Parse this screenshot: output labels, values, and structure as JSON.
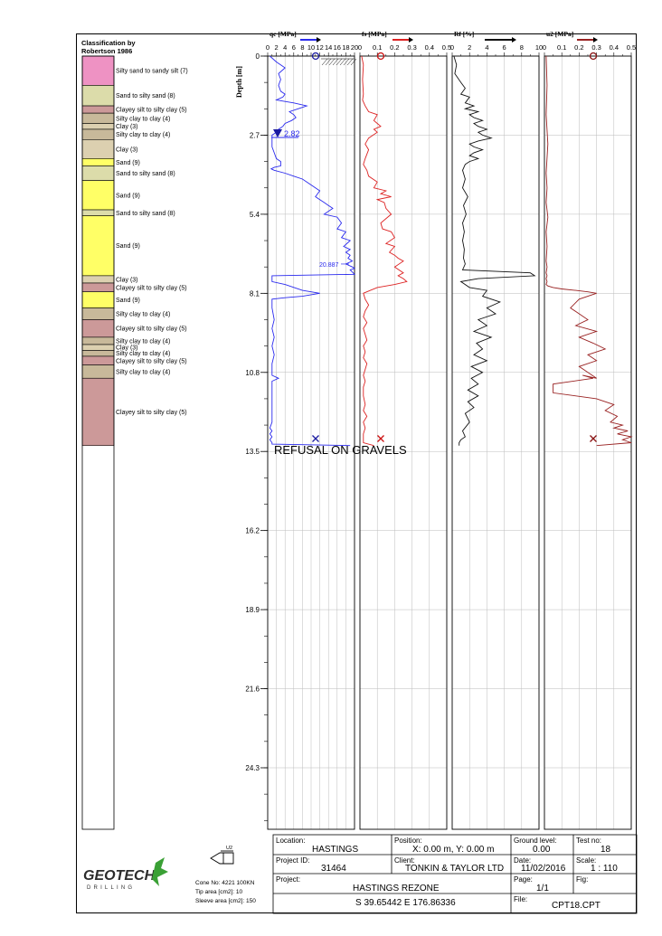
{
  "classification": {
    "title_line1": "Classification by",
    "title_line2": "Robertson 1986",
    "max_depth": 26.4,
    "layers": [
      {
        "top": 0.0,
        "bottom": 1.0,
        "label": "Silty sand to sandy silt (7)",
        "color": "#ee92c3"
      },
      {
        "top": 1.0,
        "bottom": 1.7,
        "label": "Sand to silty sand (8)",
        "color": "#dcdcaa"
      },
      {
        "top": 1.7,
        "bottom": 1.95,
        "label": "Clayey silt to silty clay (5)",
        "color": "#cc9999"
      },
      {
        "top": 1.95,
        "bottom": 2.3,
        "label": "Silty clay to clay (4)",
        "color": "#c8b99a"
      },
      {
        "top": 2.3,
        "bottom": 2.5,
        "label": "Clay (3)",
        "color": "#dcd0b0"
      },
      {
        "top": 2.5,
        "bottom": 2.85,
        "label": "Silty clay to clay (4)",
        "color": "#c8b99a"
      },
      {
        "top": 2.85,
        "bottom": 3.5,
        "label": "Clay (3)",
        "color": "#dcd0b0"
      },
      {
        "top": 3.5,
        "bottom": 3.75,
        "label": "Sand (9)",
        "color": "#ffff66"
      },
      {
        "top": 3.75,
        "bottom": 4.25,
        "label": "Sand to silty sand (8)",
        "color": "#dcdcaa"
      },
      {
        "top": 4.25,
        "bottom": 5.25,
        "label": "Sand (9)",
        "color": "#ffff66"
      },
      {
        "top": 5.25,
        "bottom": 5.45,
        "label": "Sand to silty sand (8)",
        "color": "#dcdcaa"
      },
      {
        "top": 5.45,
        "bottom": 7.5,
        "label": "Sand (9)",
        "color": "#ffff66"
      },
      {
        "top": 7.5,
        "bottom": 7.75,
        "label": "Clay (3)",
        "color": "#dcd0b0"
      },
      {
        "top": 7.75,
        "bottom": 8.05,
        "label": "Clayey silt to silty clay (5)",
        "color": "#cc9999"
      },
      {
        "top": 8.05,
        "bottom": 8.6,
        "label": "Sand (9)",
        "color": "#ffff66"
      },
      {
        "top": 8.6,
        "bottom": 9.0,
        "label": "Silty clay to clay (4)",
        "color": "#c8b99a"
      },
      {
        "top": 9.0,
        "bottom": 9.6,
        "label": "Clayey silt to silty clay (5)",
        "color": "#cc9999"
      },
      {
        "top": 9.6,
        "bottom": 9.85,
        "label": "Silty clay to clay (4)",
        "color": "#c8b99a"
      },
      {
        "top": 9.85,
        "bottom": 10.05,
        "label": "Clay (3)",
        "color": "#dcd0b0"
      },
      {
        "top": 10.05,
        "bottom": 10.25,
        "label": "Silty clay to clay (4)",
        "color": "#c8b99a"
      },
      {
        "top": 10.25,
        "bottom": 10.55,
        "label": "Clayey silt to silty clay (5)",
        "color": "#cc9999"
      },
      {
        "top": 10.55,
        "bottom": 11.0,
        "label": "Silty clay to clay (4)",
        "color": "#c8b99a"
      },
      {
        "top": 11.0,
        "bottom": 13.3,
        "label": "Clayey silt to silty clay (5)",
        "color": "#cc9999"
      }
    ]
  },
  "chart_data": [
    {
      "type": "line",
      "title": "qc [MPa]",
      "ylabel": "Depth [m]",
      "xlim": [
        0,
        20
      ],
      "xticks": [
        0,
        2,
        4,
        6,
        8,
        10,
        12,
        14,
        16,
        18,
        20
      ],
      "xtick_labels": [
        "0",
        "2",
        "4",
        "6",
        "8",
        "10",
        "12",
        "14",
        "16",
        "18",
        "20"
      ],
      "ylim": [
        0,
        26.4
      ],
      "yticks": [
        0,
        2.7,
        5.4,
        8.1,
        10.8,
        13.5,
        16.2,
        18.9,
        21.6,
        24.3
      ],
      "ytick_labels": [
        "0",
        "2.7",
        "5.4",
        "8.1",
        "10.8",
        "13.5",
        "16.2",
        "18.9",
        "21.6",
        "24.3"
      ],
      "grid": true,
      "color": "#2a2aee",
      "series": [
        {
          "x": [
            0.5,
            2,
            3,
            4,
            2.5,
            3,
            2.5,
            3,
            4,
            3.5,
            2,
            4,
            6,
            7.5,
            9,
            7,
            5,
            6,
            6.5,
            5.5,
            4,
            3.5,
            2.5,
            2,
            1,
            1,
            1,
            1.5,
            2,
            3,
            3,
            1.5,
            0.8,
            1.5,
            4,
            6,
            8,
            10,
            11,
            12,
            11,
            12,
            13,
            14,
            15,
            14,
            13,
            16,
            17,
            16,
            18,
            17,
            19,
            17.5,
            19,
            18,
            19,
            18.5,
            19.5,
            18,
            19.5,
            20,
            19,
            20,
            1,
            1,
            4,
            8,
            12,
            8,
            4,
            1,
            1,
            1.5,
            1,
            1.5,
            1,
            1.5,
            1,
            1,
            2.5,
            1,
            1,
            1,
            1,
            0.5,
            1,
            0.5,
            1,
            0.5,
            1,
            1,
            19
          ],
          "y": [
            0,
            0.2,
            0.3,
            0.4,
            0.6,
            0.8,
            1.0,
            1.2,
            1.3,
            1.4,
            1.5,
            1.55,
            1.6,
            1.65,
            1.7,
            1.8,
            1.9,
            2.0,
            2.1,
            2.2,
            2.3,
            2.4,
            2.5,
            2.6,
            2.7,
            2.9,
            3.1,
            3.3,
            3.5,
            3.6,
            3.75,
            3.8,
            3.85,
            3.9,
            4.0,
            4.1,
            4.2,
            4.4,
            4.5,
            4.6,
            4.8,
            4.9,
            5.0,
            5.1,
            5.2,
            5.3,
            5.4,
            5.5,
            5.7,
            5.9,
            6.0,
            6.2,
            6.3,
            6.5,
            6.6,
            6.7,
            6.8,
            6.9,
            7.0,
            7.1,
            7.2,
            7.25,
            7.3,
            7.45,
            7.5,
            7.7,
            7.8,
            8.0,
            8.1,
            8.2,
            8.25,
            8.3,
            8.6,
            9.0,
            9.3,
            9.6,
            9.9,
            10.2,
            10.5,
            10.9,
            11.0,
            11.1,
            11.5,
            12.0,
            12.5,
            12.7,
            12.8,
            12.9,
            13.0,
            13.1,
            13.2,
            13.25,
            13.3
          ]
        }
      ],
      "annotations": [
        {
          "text": "2.82",
          "x": 2.0,
          "y": 2.7
        },
        {
          "text": "20.887",
          "x": 16.5,
          "y": 7.1
        },
        {
          "text": "REFUSAL ON GRAVELS",
          "x": 1.0,
          "y": 13.85
        }
      ]
    },
    {
      "type": "line",
      "title": "fs [MPa]",
      "xlim": [
        0,
        0.5
      ],
      "xticks": [
        0,
        0.1,
        0.2,
        0.3,
        0.4,
        0.5
      ],
      "xtick_labels": [
        "0",
        "0.1",
        "0.2",
        "0.3",
        "0.4",
        "0.5"
      ],
      "color": "#dd2222",
      "series": [
        {
          "x": [
            0.01,
            0.02,
            0.015,
            0.02,
            0.015,
            0.03,
            0.05,
            0.1,
            0.08,
            0.1,
            0.12,
            0.08,
            0.1,
            0.05,
            0.03,
            0.05,
            0.03,
            0.02,
            0.04,
            0.05,
            0.1,
            0.08,
            0.15,
            0.12,
            0.18,
            0.1,
            0.14,
            0.15,
            0.18,
            0.16,
            0.12,
            0.13,
            0.18,
            0.2,
            0.15,
            0.2,
            0.17,
            0.2,
            0.22,
            0.25,
            0.2,
            0.25,
            0.22,
            0.25,
            0.27,
            0.2,
            0.1,
            0.06,
            0.02,
            0.03,
            0.05,
            0.03,
            0.02,
            0.04,
            0.02,
            0.03,
            0.04,
            0.02,
            0.03,
            0.02,
            0.04,
            0.03,
            0.02,
            0.03,
            0.02,
            0.02,
            0.03,
            0.02,
            0.04,
            0.02,
            0.03,
            0.02,
            0.02,
            0.02,
            0.08
          ],
          "y": [
            0,
            0.3,
            0.8,
            1.3,
            1.5,
            1.7,
            1.9,
            2.0,
            2.2,
            2.3,
            2.4,
            2.5,
            2.6,
            2.8,
            3.0,
            3.2,
            3.5,
            3.7,
            3.9,
            4.1,
            4.3,
            4.5,
            4.6,
            4.7,
            4.8,
            4.9,
            5.0,
            5.2,
            5.4,
            5.5,
            5.7,
            5.9,
            6.0,
            6.2,
            6.4,
            6.5,
            6.7,
            6.8,
            6.9,
            7.0,
            7.2,
            7.4,
            7.5,
            7.6,
            7.7,
            7.8,
            7.9,
            8.0,
            8.1,
            8.3,
            8.5,
            8.7,
            8.9,
            9.1,
            9.3,
            9.5,
            9.7,
            9.9,
            10.1,
            10.3,
            10.5,
            10.7,
            10.9,
            11.1,
            11.3,
            11.6,
            11.9,
            12.1,
            12.3,
            12.5,
            12.7,
            12.9,
            13.1,
            13.2,
            13.3
          ]
        }
      ]
    },
    {
      "type": "line",
      "title": "Rf [%]",
      "xlim": [
        0,
        10
      ],
      "xticks": [
        0,
        2,
        4,
        6,
        8,
        10
      ],
      "xtick_labels": [
        "0",
        "2",
        "4",
        "6",
        "8",
        "10"
      ],
      "color": "#111111",
      "series": [
        {
          "x": [
            0.2,
            0.5,
            0.3,
            1,
            1.5,
            1,
            2,
            1.5,
            2.5,
            1.5,
            3,
            2,
            2.5,
            3.5,
            2.5,
            3,
            4,
            3,
            3.5,
            4.5,
            3,
            2,
            2.5,
            3.5,
            2.5,
            2,
            3,
            2,
            1.5,
            1.2,
            1.5,
            1.2,
            1.8,
            1.3,
            1.6,
            1.2,
            1.4,
            1.2,
            1.4,
            1.3,
            1.5,
            1.2,
            9,
            9.5,
            3,
            1,
            2,
            4,
            3.5,
            5.5,
            4,
            5,
            3,
            4,
            2.5,
            4.5,
            2.8,
            3.5,
            2.5,
            4,
            2.2,
            3.5,
            2.2,
            3,
            1.8,
            3,
            1.8,
            2.5,
            1.5,
            2,
            1.2,
            1.5,
            1,
            0.8,
            0.8
          ],
          "y": [
            0,
            0.3,
            0.6,
            0.9,
            1.1,
            1.3,
            1.4,
            1.6,
            1.7,
            1.8,
            1.9,
            2.0,
            2.1,
            2.2,
            2.3,
            2.4,
            2.5,
            2.6,
            2.7,
            2.8,
            2.9,
            3.0,
            3.1,
            3.2,
            3.3,
            3.4,
            3.5,
            3.6,
            3.7,
            3.9,
            4.2,
            4.5,
            4.8,
            5.1,
            5.4,
            5.7,
            6.0,
            6.3,
            6.6,
            6.9,
            7.1,
            7.3,
            7.4,
            7.5,
            7.6,
            7.7,
            7.9,
            8.0,
            8.2,
            8.4,
            8.6,
            8.8,
            9.0,
            9.2,
            9.4,
            9.6,
            9.8,
            10.0,
            10.2,
            10.4,
            10.6,
            10.8,
            11.0,
            11.2,
            11.4,
            11.6,
            11.8,
            12.0,
            12.2,
            12.5,
            12.8,
            13.0,
            13.1,
            13.2,
            13.3
          ]
        }
      ]
    },
    {
      "type": "line",
      "title": "u2 [MPa]",
      "xlim": [
        0,
        0.5
      ],
      "xticks": [
        0,
        0.1,
        0.2,
        0.3,
        0.4,
        0.5
      ],
      "xtick_labels": [
        "0",
        "0.1",
        "0.2",
        "0.3",
        "0.4",
        "0.5"
      ],
      "color": "#992222",
      "series": [
        {
          "x": [
            0.01,
            0.015,
            0.01,
            0.02,
            0.01,
            0.015,
            0.01,
            0.02,
            0.01,
            0.015,
            0.01,
            0.015,
            0.01,
            0.015,
            0.01,
            0.015,
            0.01,
            0.02,
            0.05,
            0.1,
            0.18,
            0.25,
            0.3,
            0.2,
            0.15,
            0.25,
            0.18,
            0.3,
            0.2,
            0.28,
            0.35,
            0.25,
            0.3,
            0.2,
            0.25,
            0.3,
            0.22,
            0.28,
            0.05,
            0.05,
            0.3,
            0.4,
            0.35,
            0.42,
            0.38,
            0.45,
            0.4,
            0.48,
            0.42,
            0.5,
            0.45,
            0.5,
            0.3
          ],
          "y": [
            0,
            1.0,
            2.0,
            3.0,
            4.0,
            4.5,
            5.0,
            5.5,
            6.0,
            6.5,
            7.0,
            7.2,
            7.4,
            7.5,
            7.6,
            7.7,
            7.8,
            7.85,
            7.9,
            7.95,
            8.0,
            8.05,
            8.1,
            8.3,
            8.6,
            9.0,
            9.2,
            9.4,
            9.6,
            9.8,
            10.0,
            10.2,
            10.4,
            10.6,
            10.8,
            11.0,
            10.9,
            11.0,
            11.2,
            11.5,
            11.7,
            11.9,
            12.1,
            12.3,
            12.5,
            12.6,
            12.7,
            12.8,
            12.9,
            13.0,
            13.1,
            13.2,
            13.3
          ]
        }
      ]
    }
  ],
  "water_level": "2.82",
  "refusal_text": "REFUSAL ON GRAVELS",
  "footer": {
    "location_label": "Location:",
    "location": "HASTINGS",
    "position_label": "Position:",
    "position": "X: 0.00 m, Y: 0.00 m",
    "ground_label": "Ground level:",
    "ground": "0.00",
    "testno_label": "Test no:",
    "testno": "18",
    "projectid_label": "Project ID:",
    "projectid": "31464",
    "client_label": "Client:",
    "client": "TONKIN & TAYLOR LTD",
    "date_label": "Date:",
    "date": "11/02/2016",
    "scale_label": "Scale:",
    "scale": "1 : 110",
    "project_label": "Project:",
    "project": "HASTINGS REZONE",
    "page_label": "Page:",
    "page": "1/1",
    "fig_label": "Fig:",
    "coords": "S 39.65442 E 176.86336",
    "file_label": "File:",
    "file": "CPT18.CPT",
    "cone_no": "Cone No: 4221 100KN",
    "tip_area": "Tip area [cm2]: 10",
    "sleeve_area": "Sleeve area [cm2]: 150",
    "cone_label": "U2",
    "logo_name": "GEOTECH",
    "logo_sub": "DRILLING"
  }
}
